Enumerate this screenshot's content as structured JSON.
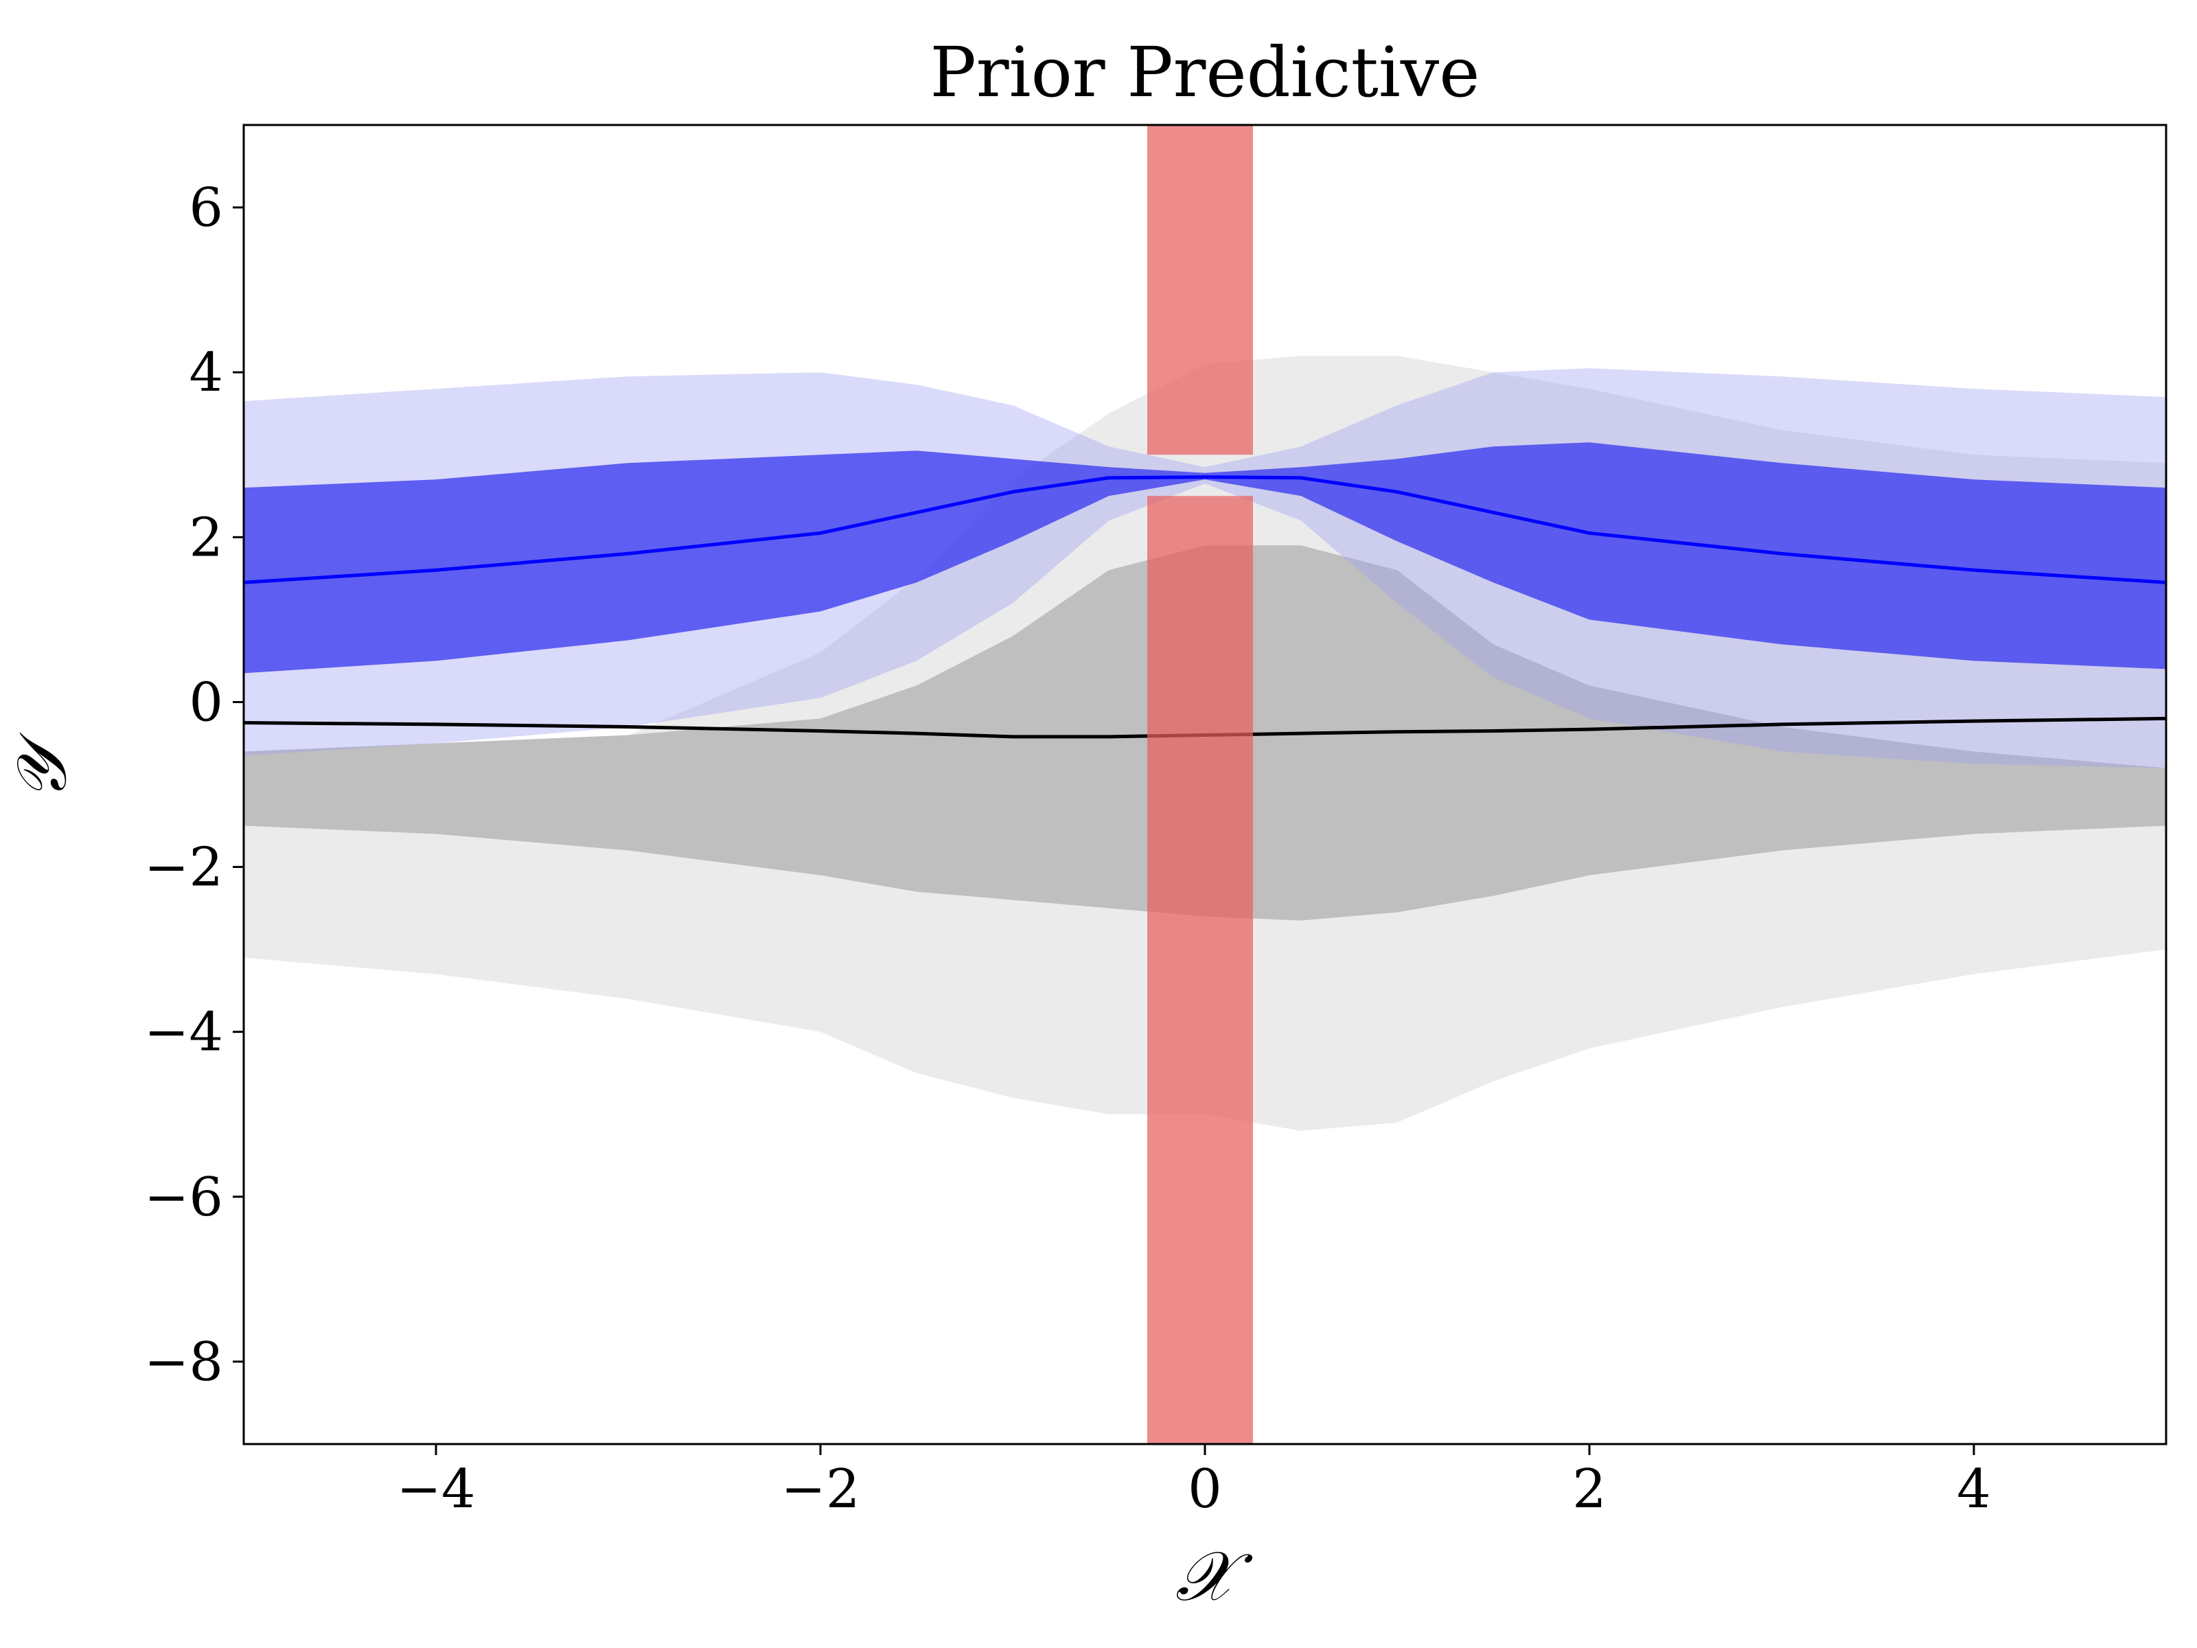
{
  "chart_data": {
    "type": "area",
    "title": "Prior Predictive",
    "xlabel": "𝒳",
    "ylabel": "𝒴",
    "xlim": [
      -5,
      5
    ],
    "ylim": [
      -9,
      7
    ],
    "xticks": [
      -4,
      -2,
      0,
      2,
      4
    ],
    "yticks": [
      -8,
      -6,
      -4,
      -2,
      0,
      2,
      4,
      6
    ],
    "grid": false,
    "colors": {
      "gray_outer": "#ebebeb",
      "gray_inner": "#bfbfbf",
      "gray_mean": "#000000",
      "blue_outer": "#d7d7fb",
      "blue_inner": "#5f5ff3",
      "blue_mean": "#0000ff",
      "blue_overlap_outer": "#c4c4e8",
      "blue_overlap_inner": "#a2a2c8",
      "blue_overlap_deep": "#4e4ee2",
      "highlight": "#e8605f"
    },
    "x": [
      -5,
      -4,
      -3,
      -2,
      -1.5,
      -1,
      -0.5,
      0,
      0.5,
      1,
      1.5,
      2,
      3,
      4,
      5
    ],
    "series": [
      {
        "kind": "gray",
        "mean": [
          -0.25,
          -0.27,
          -0.3,
          -0.35,
          -0.38,
          -0.42,
          -0.42,
          -0.4,
          -0.38,
          -0.36,
          -0.35,
          -0.33,
          -0.27,
          -0.23,
          -0.2
        ],
        "inner_lower": [
          -1.5,
          -1.6,
          -1.8,
          -2.1,
          -2.3,
          -2.4,
          -2.5,
          -2.6,
          -2.65,
          -2.55,
          -2.35,
          -2.1,
          -1.8,
          -1.6,
          -1.5
        ],
        "inner_upper": [
          -0.6,
          -0.5,
          -0.4,
          -0.2,
          0.2,
          0.8,
          1.6,
          1.9,
          1.9,
          1.6,
          0.7,
          0.2,
          -0.3,
          -0.6,
          -0.8
        ],
        "outer_lower": [
          -3.1,
          -3.3,
          -3.6,
          -4.0,
          -4.5,
          -4.8,
          -5.0,
          -5.0,
          -5.2,
          -5.1,
          -4.6,
          -4.2,
          -3.7,
          -3.3,
          -3.0
        ],
        "outer_upper": [
          -0.6,
          -0.5,
          -0.4,
          0.6,
          1.5,
          2.7,
          3.5,
          4.1,
          4.2,
          4.2,
          4.0,
          3.8,
          3.3,
          3.0,
          2.9
        ]
      },
      {
        "kind": "blue",
        "mean": [
          1.45,
          1.6,
          1.8,
          2.05,
          2.3,
          2.55,
          2.72,
          2.73,
          2.72,
          2.55,
          2.3,
          2.05,
          1.8,
          1.6,
          1.45
        ],
        "inner_lower": [
          0.35,
          0.5,
          0.75,
          1.1,
          1.45,
          1.95,
          2.5,
          2.7,
          2.5,
          1.95,
          1.45,
          1.0,
          0.7,
          0.5,
          0.4
        ],
        "inner_upper": [
          2.6,
          2.7,
          2.9,
          3.0,
          3.05,
          2.95,
          2.85,
          2.78,
          2.85,
          2.95,
          3.1,
          3.15,
          2.9,
          2.7,
          2.6
        ],
        "outer_lower": [
          -0.65,
          -0.5,
          -0.3,
          0.05,
          0.5,
          1.2,
          2.2,
          2.65,
          2.2,
          1.2,
          0.3,
          -0.2,
          -0.6,
          -0.75,
          -0.8
        ],
        "outer_upper": [
          3.65,
          3.8,
          3.95,
          4.0,
          3.85,
          3.6,
          3.1,
          2.85,
          3.1,
          3.6,
          4.0,
          4.05,
          3.95,
          3.8,
          3.7
        ]
      }
    ],
    "highlight_region": {
      "x": [
        -0.3,
        0.25
      ],
      "y_lower_segment": [
        -9,
        2.5
      ],
      "y_upper_segment": [
        3.0,
        7
      ]
    }
  }
}
